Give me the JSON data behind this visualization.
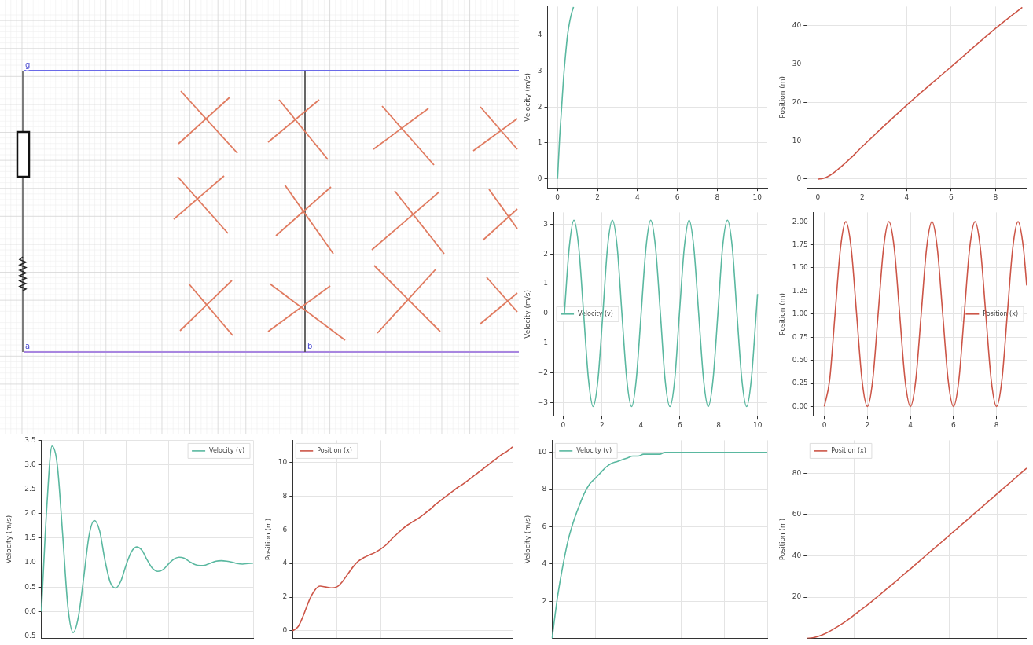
{
  "chart_data": [
    {
      "type": "other",
      "annotations": [
        "g",
        "a",
        "b"
      ]
    },
    {
      "type": "line",
      "ylabel": "Velocity (m/s)",
      "xlim": [
        -0.5,
        10.5
      ],
      "xticks": [
        0,
        2,
        4,
        6,
        8,
        10
      ],
      "ylim": [
        -0.25,
        4.79
      ],
      "yticks": [
        0,
        1,
        2,
        3,
        4
      ],
      "grid": true,
      "series": [
        {
          "color": "#5ab8a0",
          "x": [
            0,
            0.1,
            0.2,
            0.3,
            0.4,
            0.5,
            0.6,
            0.7,
            0.8
          ],
          "values": [
            0,
            1.1,
            1.95,
            2.8,
            3.45,
            4.0,
            4.35,
            4.6,
            4.78
          ]
        }
      ]
    },
    {
      "type": "line",
      "ylabel": "Position (m)",
      "xlim": [
        -0.5,
        9.4
      ],
      "xticks": [
        0,
        2,
        4,
        6,
        8
      ],
      "ylim": [
        -2.3,
        45
      ],
      "yticks": [
        0,
        10,
        20,
        30,
        40
      ],
      "grid": true,
      "series": [
        {
          "color": "#cc5547",
          "x": [
            0,
            0.25,
            0.5,
            0.75,
            1,
            1.5,
            2,
            4,
            6,
            8,
            9.2
          ],
          "values": [
            0,
            0.2,
            0.8,
            1.8,
            3.0,
            5.6,
            8.5,
            19.3,
            29.3,
            39.3,
            44.8
          ]
        }
      ]
    },
    {
      "type": "line",
      "ylabel": "Velocity (m/s)",
      "xlim": [
        -0.5,
        10.5
      ],
      "xticks": [
        0,
        2,
        4,
        6,
        8,
        10
      ],
      "ylim": [
        -3.45,
        3.4
      ],
      "yticks": [
        {
          "value": -3,
          "label": "−3"
        },
        {
          "value": -2,
          "label": "−2"
        },
        {
          "value": -1,
          "label": "−1"
        },
        0,
        1,
        2,
        3
      ],
      "grid": true,
      "legend": "left",
      "series": [
        {
          "name": "Velocity (v)",
          "color": "#5ab8a0",
          "x": [
            0.06,
            0.31,
            0.55,
            0.8,
            1.05,
            1.3,
            1.54,
            1.79,
            2.04,
            2.28,
            2.53,
            2.78,
            3.02,
            3.27,
            3.52,
            3.76,
            4.01,
            4.26,
            4.5,
            4.75,
            5.0,
            5.24,
            5.49,
            5.74,
            5.98,
            6.23,
            6.48,
            6.72,
            6.97,
            7.22,
            7.46,
            7.71,
            7.96,
            8.2,
            8.45,
            8.7,
            8.94,
            9.19,
            9.44,
            9.68,
            9.93,
            10
          ],
          "values": [
            0,
            2.22,
            3.14,
            2.22,
            0,
            -2.22,
            -3.14,
            -2.22,
            0,
            2.22,
            3.14,
            2.22,
            0,
            -2.22,
            -3.14,
            -2.22,
            0,
            2.22,
            3.14,
            2.22,
            0,
            -2.22,
            -3.14,
            -2.22,
            0,
            2.22,
            3.14,
            2.22,
            0,
            -2.22,
            -3.14,
            -2.22,
            0,
            2.22,
            3.14,
            2.22,
            0,
            -2.22,
            -3.14,
            -2.22,
            0,
            0.65
          ]
        }
      ]
    },
    {
      "type": "line",
      "ylabel": "Position (m)",
      "xlim": [
        -0.5,
        9.4
      ],
      "xticks": [
        0,
        2,
        4,
        6,
        8
      ],
      "ylim": [
        -0.1,
        2.1
      ],
      "yticks": [
        {
          "value": 0,
          "label": "0.00"
        },
        {
          "value": 0.25,
          "label": "0.25"
        },
        {
          "value": 0.5,
          "label": "0.50"
        },
        {
          "value": 0.75,
          "label": "0.75"
        },
        {
          "value": 1,
          "label": "1.00"
        },
        {
          "value": 1.25,
          "label": "1.25"
        },
        {
          "value": 1.5,
          "label": "1.50"
        },
        {
          "value": 1.75,
          "label": "1.75"
        },
        {
          "value": 2,
          "label": "2.00"
        }
      ],
      "grid": true,
      "legend": "right",
      "series": [
        {
          "name": "Position (x)",
          "color": "#cc5547",
          "x": [
            0,
            0.25,
            0.5,
            0.75,
            1,
            1.25,
            1.5,
            1.75,
            2,
            2.25,
            2.5,
            2.75,
            3,
            3.25,
            3.5,
            3.75,
            4,
            4.25,
            4.5,
            4.75,
            5,
            5.25,
            5.5,
            5.75,
            6,
            6.25,
            6.5,
            6.75,
            7,
            7.25,
            7.5,
            7.75,
            8,
            8.25,
            8.5,
            8.75,
            9,
            9.25,
            9.4
          ],
          "values": [
            0,
            0.29,
            1,
            1.71,
            2,
            1.71,
            1,
            0.29,
            0,
            0.29,
            1,
            1.71,
            2,
            1.71,
            1,
            0.29,
            0,
            0.29,
            1,
            1.71,
            2,
            1.71,
            1,
            0.29,
            0,
            0.29,
            1,
            1.71,
            2,
            1.71,
            1,
            0.29,
            0,
            0.29,
            1,
            1.71,
            2,
            1.71,
            1.31
          ]
        }
      ]
    },
    {
      "type": "line",
      "ylabel": "Velocity (m/s)",
      "tick_labels": "y",
      "ylim": [
        -0.55,
        3.5
      ],
      "yticks": [
        {
          "value": -0.5,
          "label": "−0.5"
        },
        {
          "value": 0,
          "label": "0.0"
        },
        {
          "value": 0.5,
          "label": "0.5"
        },
        {
          "value": 1,
          "label": "1.0"
        },
        {
          "value": 1.5,
          "label": "1.5"
        },
        {
          "value": 2,
          "label": "2.0"
        },
        {
          "value": 2.5,
          "label": "2.5"
        },
        {
          "value": 3,
          "label": "3.0"
        },
        {
          "value": 3.5,
          "label": "3.5"
        }
      ],
      "grid": true,
      "legend": "top right",
      "categories": [
        null,
        null,
        null,
        null,
        null,
        null,
        null,
        null,
        null,
        null,
        null,
        null,
        null,
        null,
        null,
        null,
        null,
        null,
        null,
        null,
        null,
        null,
        null,
        null,
        null,
        null,
        null,
        null,
        null,
        null,
        null,
        null,
        null,
        null,
        null,
        null,
        null,
        null,
        null,
        null,
        null
      ],
      "series": [
        {
          "name": "Velocity (v)",
          "color": "#5ab8a0",
          "values": [
            0,
            2.1,
            3.38,
            3.0,
            1.6,
            0.1,
            -0.43,
            -0.1,
            0.7,
            1.55,
            1.86,
            1.65,
            1.05,
            0.6,
            0.48,
            0.62,
            0.95,
            1.22,
            1.32,
            1.25,
            1.05,
            0.88,
            0.82,
            0.86,
            0.97,
            1.07,
            1.11,
            1.09,
            1.02,
            0.96,
            0.94,
            0.95,
            0.99,
            1.03,
            1.04,
            1.03,
            1.01,
            0.98,
            0.97,
            0.98,
            0.99
          ]
        }
      ]
    },
    {
      "type": "line",
      "ylabel": "Position (m)",
      "tick_labels": "y",
      "ylim": [
        -0.45,
        11.3
      ],
      "yticks": [
        0,
        2,
        4,
        6,
        8,
        10
      ],
      "grid": true,
      "legend": "top left",
      "categories": [
        null,
        null,
        null,
        null,
        null,
        null,
        null,
        null,
        null,
        null,
        null,
        null,
        null,
        null,
        null,
        null,
        null,
        null,
        null,
        null,
        null,
        null,
        null,
        null,
        null,
        null,
        null,
        null,
        null,
        null,
        null,
        null,
        null,
        null,
        null,
        null,
        null,
        null,
        null,
        null,
        null
      ],
      "series": [
        {
          "name": "Position (x)",
          "color": "#cc5547",
          "values": [
            0,
            0.25,
            0.95,
            1.8,
            2.4,
            2.65,
            2.6,
            2.55,
            2.6,
            2.9,
            3.35,
            3.8,
            4.15,
            4.35,
            4.5,
            4.65,
            4.85,
            5.1,
            5.45,
            5.75,
            6.05,
            6.3,
            6.5,
            6.7,
            6.95,
            7.2,
            7.5,
            7.75,
            8.0,
            8.25,
            8.5,
            8.7,
            8.95,
            9.2,
            9.45,
            9.7,
            9.95,
            10.2,
            10.45,
            10.65,
            10.9
          ]
        }
      ]
    },
    {
      "type": "line",
      "ylabel": "Velocity (m/s)",
      "tick_labels": "y",
      "ylim": [
        0,
        10.65
      ],
      "yticks": [
        2,
        4,
        6,
        8,
        10
      ],
      "grid": true,
      "legend": "top left",
      "categories": [
        null,
        null,
        null,
        null,
        null,
        null,
        null,
        null,
        null,
        null,
        null,
        null,
        null,
        null,
        null,
        null,
        null,
        null,
        null,
        null,
        null,
        null,
        null,
        null,
        null,
        null,
        null,
        null,
        null,
        null,
        null,
        null,
        null,
        null,
        null,
        null,
        null,
        null,
        null,
        null,
        null
      ],
      "series": [
        {
          "name": "Velocity (v)",
          "color": "#5ab8a0",
          "values": [
            0,
            2.2,
            3.9,
            5.3,
            6.3,
            7.1,
            7.8,
            8.3,
            8.6,
            8.9,
            9.2,
            9.4,
            9.5,
            9.6,
            9.7,
            9.8,
            9.8,
            9.9,
            9.9,
            9.9,
            9.9,
            10,
            10,
            10,
            10,
            10,
            10,
            10,
            10,
            10,
            10,
            10,
            10,
            10,
            10,
            10,
            10,
            10,
            10,
            10,
            10
          ]
        }
      ]
    },
    {
      "type": "line",
      "ylabel": "Position (m)",
      "tick_labels": "y",
      "ylim": [
        0,
        96
      ],
      "yticks": [
        20,
        40,
        60,
        80
      ],
      "grid": true,
      "legend": "top left",
      "categories": [
        null,
        null,
        null,
        null,
        null,
        null,
        null,
        null,
        null,
        null,
        null,
        null,
        null,
        null,
        null,
        null,
        null,
        null,
        null,
        null,
        null,
        null,
        null,
        null,
        null,
        null,
        null,
        null,
        null,
        null,
        null,
        null,
        null,
        null,
        null,
        null,
        null,
        null
      ],
      "series": [
        {
          "name": "Position (x)",
          "color": "#cc5547",
          "values": [
            0,
            0.3,
            1.1,
            2.2,
            3.7,
            5.4,
            7.2,
            9.2,
            11.4,
            13.6,
            15.8,
            18.1,
            20.5,
            22.9,
            25.3,
            27.7,
            30.2,
            32.6,
            35.1,
            37.6,
            40.1,
            42.6,
            45.0,
            47.5,
            50.0,
            52.5,
            55.0,
            57.5,
            60.0,
            62.5,
            65.0,
            67.5,
            70.0,
            72.5,
            75.0,
            77.5,
            80.0,
            82.5
          ]
        }
      ]
    }
  ]
}
